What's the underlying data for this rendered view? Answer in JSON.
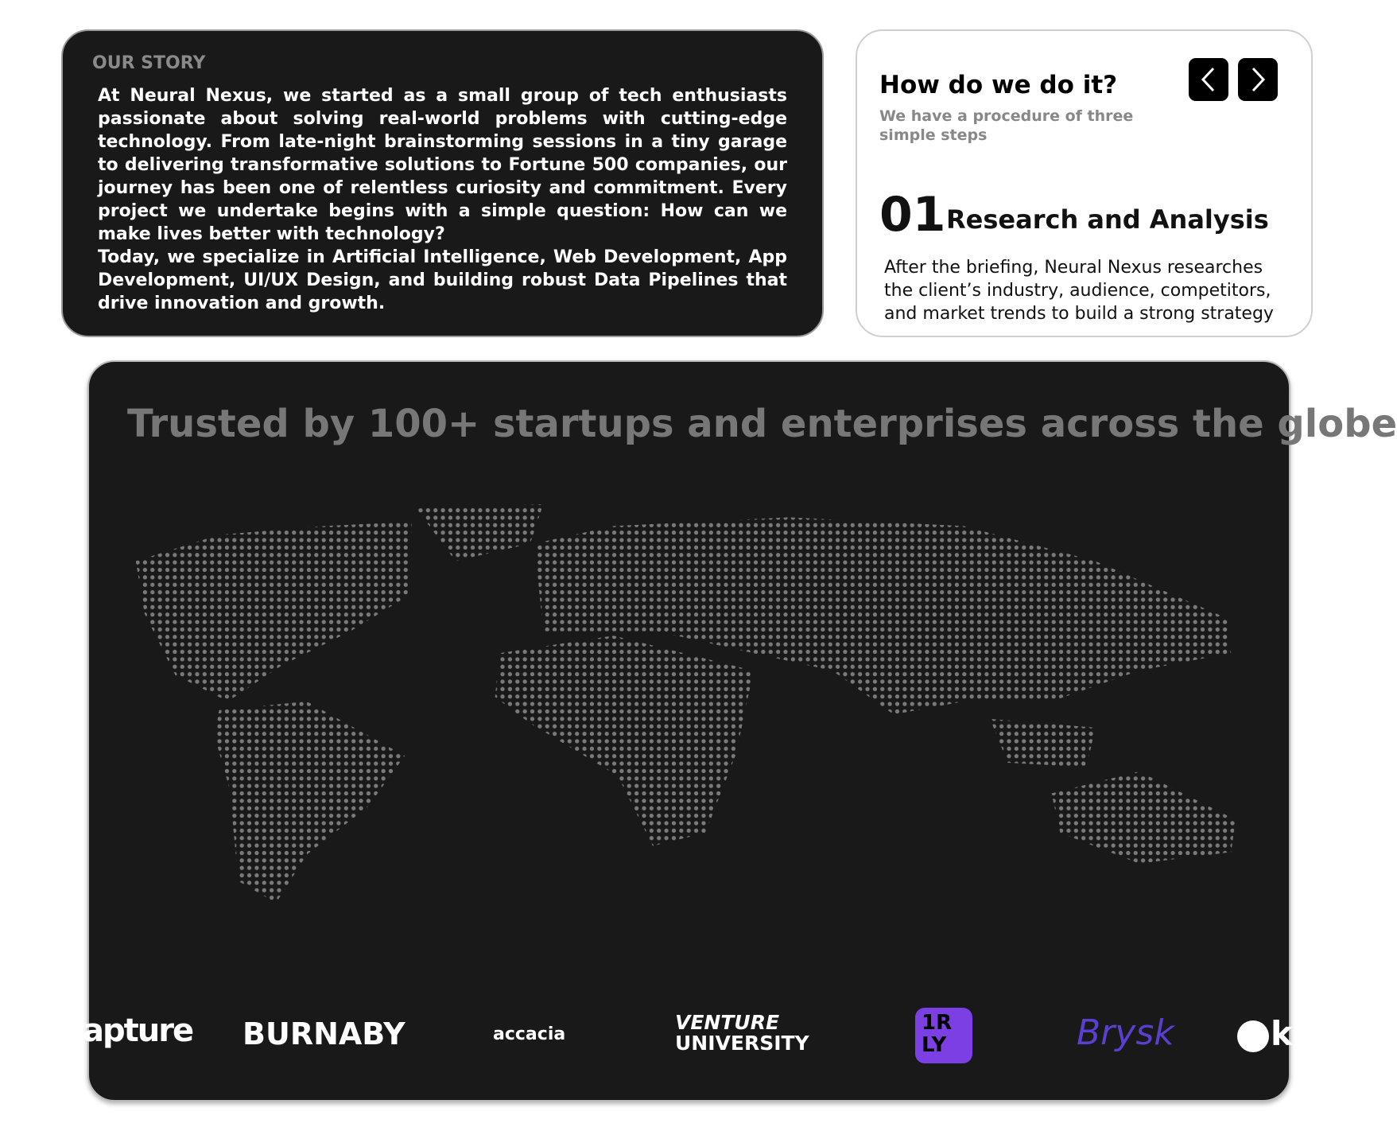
{
  "our_story": {
    "label": "OUR STORY",
    "paragraphs": [
      "At Neural Nexus, we started as a small group of tech enthusiasts passionate about solving real-world problems with cutting-edge technology. From late-night brainstorming sessions in a tiny garage to delivering transformative solutions to Fortune 500 companies, our journey has been one of relentless curiosity and commitment. Every project we undertake begins with a simple question: How can we make lives better with technology?",
      "Today, we specialize in Artificial Intelligence, Web Development, App Development, UI/UX Design, and building robust Data Pipelines that drive innovation and growth."
    ]
  },
  "process": {
    "title": "How do we do it?",
    "subtitle": "We have a procedure of three simple steps",
    "step": {
      "number": "01",
      "title": "Research and Analysis",
      "description": "After the briefing, Neural Nexus researches the client’s industry, audience, competitors, and market trends to build a strong strategy"
    }
  },
  "clients": {
    "title": "Trusted by 100+ startups and enterprises across the globe",
    "logos": [
      "apture",
      "BURNABY",
      "accacia",
      "VENTURE",
      "UNIVERSITY",
      "1R",
      "LY",
      "Brysk",
      "k"
    ]
  }
}
